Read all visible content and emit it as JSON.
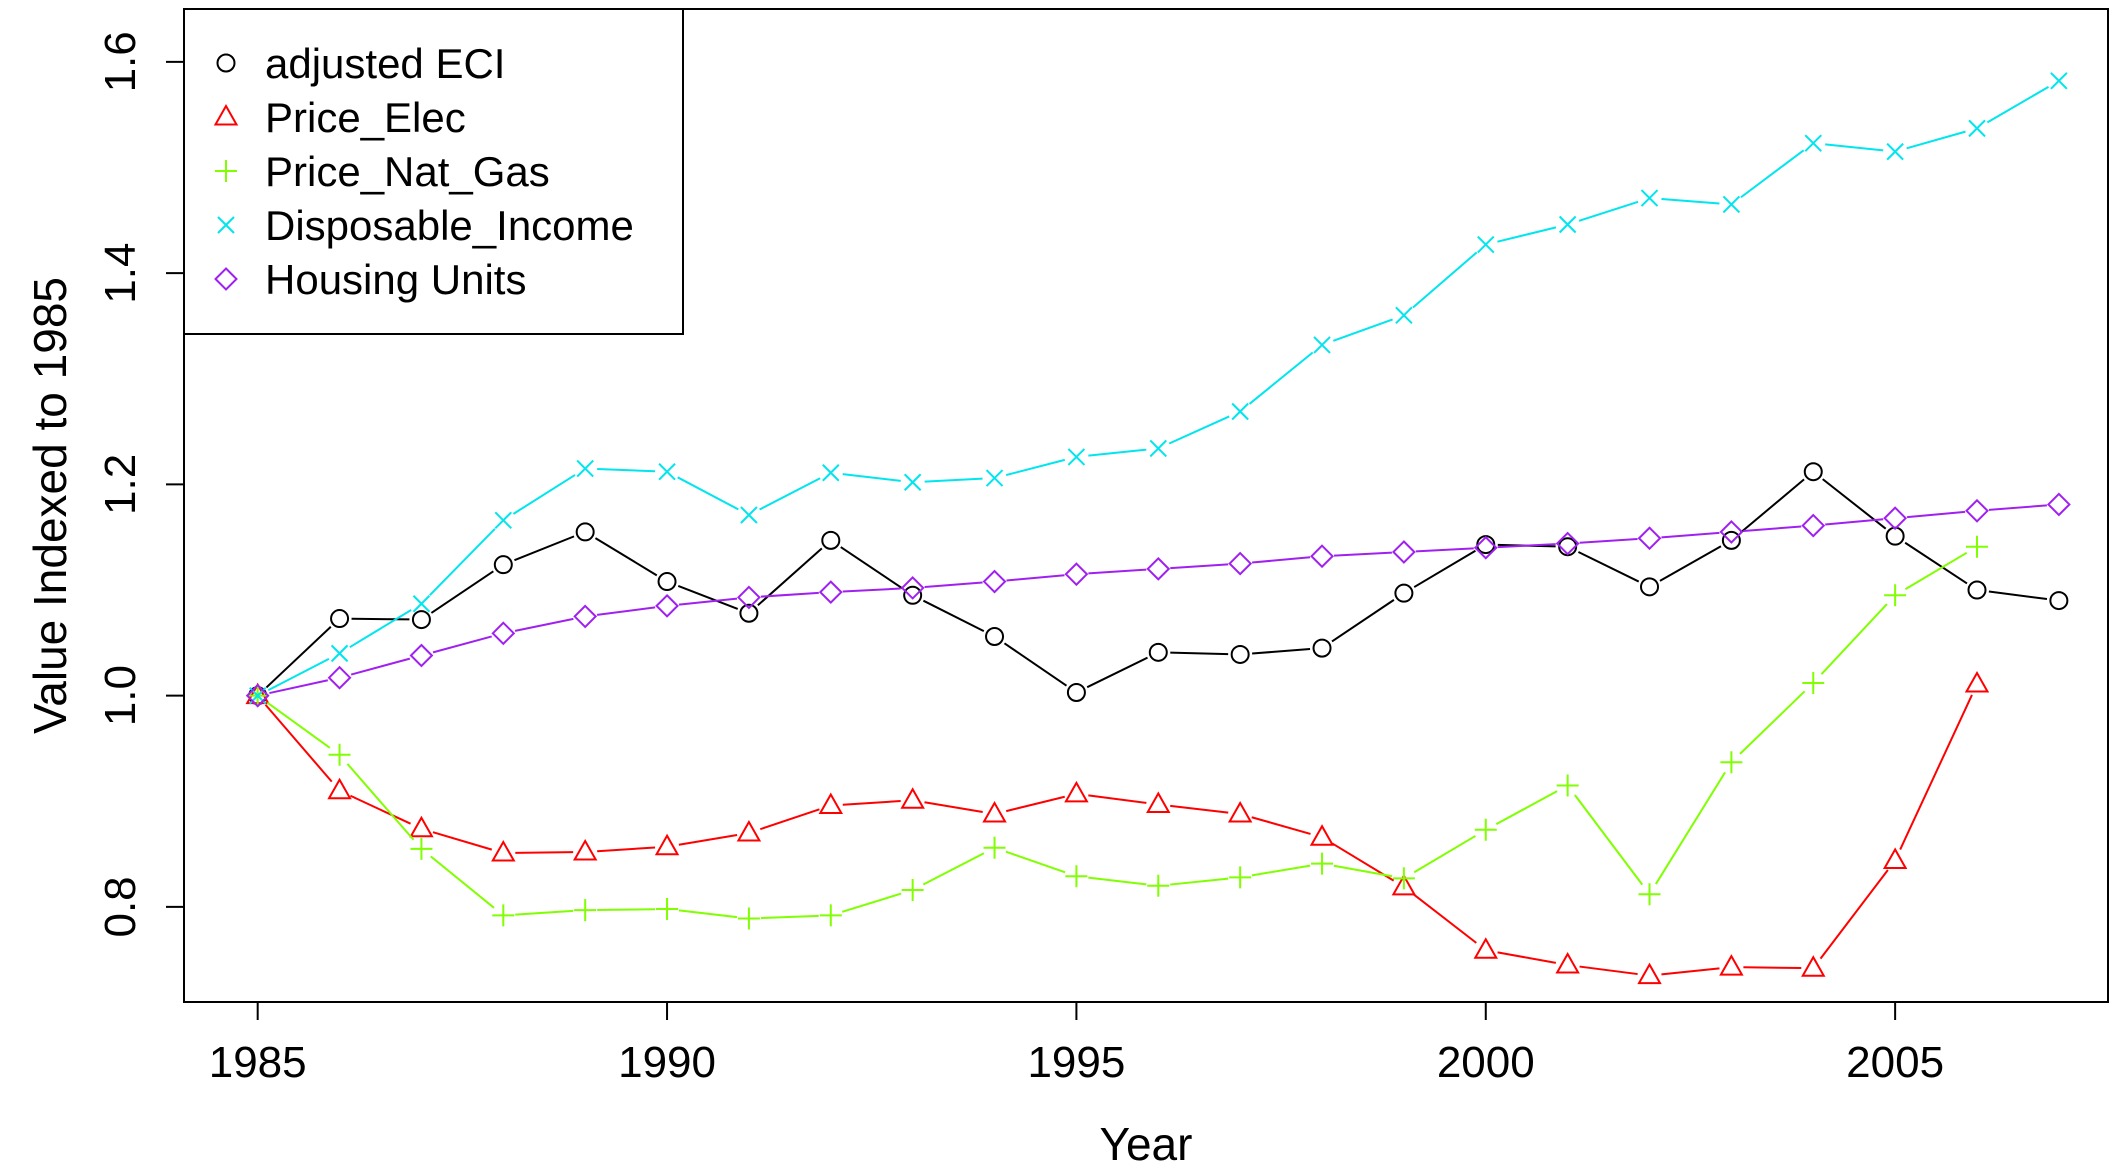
{
  "chart_data": {
    "type": "line",
    "title": "",
    "xlabel": "Year",
    "ylabel": "Value Indexed to 1985",
    "xlim": [
      1984.1,
      2007.6
    ],
    "ylim": [
      0.71,
      1.65
    ],
    "x_ticks": [
      1985,
      1990,
      1995,
      2000,
      2005
    ],
    "y_ticks": [
      0.8,
      1.0,
      1.2,
      1.4,
      1.6
    ],
    "y_tick_labels": [
      "0.8",
      "1.0",
      "1.2",
      "1.4",
      "1.6"
    ],
    "grid": false,
    "legend_position": "top-left",
    "x": [
      1985,
      1986,
      1987,
      1988,
      1989,
      1990,
      1991,
      1992,
      1993,
      1994,
      1995,
      1996,
      1997,
      1998,
      1999,
      2000,
      2001,
      2002,
      2003,
      2004,
      2005,
      2006,
      2007
    ],
    "series": [
      {
        "name": "adjusted ECI",
        "color": "#000000",
        "marker": "circle",
        "values": [
          1.0,
          1.073,
          1.072,
          1.124,
          1.155,
          1.108,
          1.078,
          1.147,
          1.095,
          1.056,
          1.003,
          1.041,
          1.039,
          1.045,
          1.097,
          1.143,
          1.141,
          1.103,
          1.147,
          1.212,
          1.151,
          1.1,
          1.09
        ]
      },
      {
        "name": "Price_Elec",
        "color": "#ff0000",
        "marker": "triangle",
        "values": [
          1.0,
          0.91,
          0.874,
          0.851,
          0.852,
          0.857,
          0.87,
          0.896,
          0.901,
          0.888,
          0.907,
          0.897,
          0.888,
          0.866,
          0.819,
          0.759,
          0.745,
          0.735,
          0.743,
          0.742,
          0.844,
          1.011,
          null
        ]
      },
      {
        "name": "Price_Nat_Gas",
        "color": "#80ff00",
        "marker": "plus",
        "values": [
          1.0,
          0.944,
          0.855,
          0.792,
          0.797,
          0.798,
          0.789,
          0.792,
          0.816,
          0.856,
          0.829,
          0.82,
          0.828,
          0.841,
          0.827,
          0.873,
          0.915,
          0.812,
          0.937,
          1.012,
          1.095,
          1.141,
          null
        ]
      },
      {
        "name": "Disposable_Income",
        "color": "#00e5ee",
        "marker": "cross",
        "values": [
          1.0,
          1.04,
          1.087,
          1.166,
          1.215,
          1.212,
          1.171,
          1.211,
          1.202,
          1.206,
          1.226,
          1.234,
          1.269,
          1.332,
          1.36,
          1.427,
          1.446,
          1.471,
          1.465,
          1.523,
          1.515,
          1.537,
          1.582
        ]
      },
      {
        "name": "Housing Units",
        "color": "#a020f0",
        "marker": "diamond",
        "values": [
          1.0,
          1.017,
          1.038,
          1.059,
          1.075,
          1.085,
          1.093,
          1.098,
          1.102,
          1.108,
          1.115,
          1.12,
          1.125,
          1.132,
          1.136,
          1.14,
          1.144,
          1.149,
          1.155,
          1.161,
          1.168,
          1.175,
          1.181
        ]
      }
    ]
  }
}
